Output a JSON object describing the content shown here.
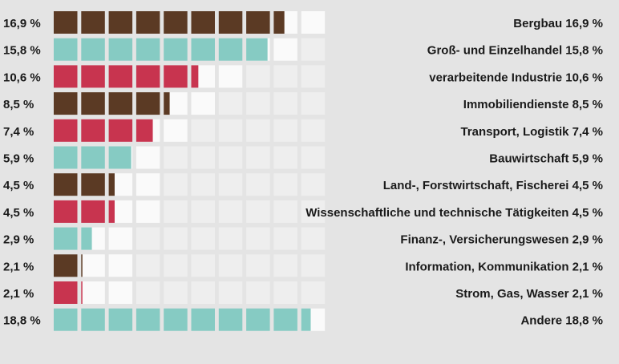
{
  "chart_data": {
    "type": "bar",
    "title": "",
    "xlabel": "",
    "ylabel": "",
    "ylim": [
      0,
      20
    ],
    "unit_per_cell": 2,
    "grid": false,
    "legend": "none",
    "categories": [
      "Bergbau",
      "Groß- und Einzelhandel",
      "verarbeitende Industrie",
      "Immobiliendienste",
      "Transport, Logistik",
      "Bauwirtschaft",
      "Land-, Forstwirtschaft, Fischerei",
      "Wissenschaftliche und technische Tätigkeiten",
      "Finanz-, Versicherungswesen",
      "Information, Kommunikation",
      "Strom, Gas, Wasser",
      "Andere"
    ],
    "values": [
      16.9,
      15.8,
      10.6,
      8.5,
      7.4,
      5.9,
      4.5,
      4.5,
      2.9,
      2.1,
      2.1,
      18.8
    ],
    "value_labels": [
      "16,9 %",
      "15,8 %",
      "10,6 %",
      "8,5 %",
      "7,4 %",
      "5,9 %",
      "4,5 %",
      "4,5 %",
      "2,9 %",
      "2,1 %",
      "2,1 %",
      "18,8 %"
    ],
    "row_labels": [
      "Bergbau 16,9 %",
      "Groß- und Einzelhandel 15,8 %",
      "verarbeitende Industrie 10,6 %",
      "Immobiliendienste 8,5 %",
      "Transport, Logistik 7,4 %",
      "Bauwirtschaft 5,9 %",
      "Land-, Forstwirtschaft, Fischerei 4,5 %",
      "Wissenschaftliche und technische Tätigkeiten 4,5 %",
      "Finanz-, Versicherungswesen 2,9 %",
      "Information, Kommunikation 2,1 %",
      "Strom, Gas, Wasser 2,1 %",
      "Andere 18,8 %"
    ],
    "bar_colors": [
      "#5b3a24",
      "#86cbc3",
      "#c8344f",
      "#5b3a24",
      "#c8344f",
      "#86cbc3",
      "#5b3a24",
      "#c8344f",
      "#86cbc3",
      "#5b3a24",
      "#c8344f",
      "#86cbc3"
    ],
    "colors": {
      "background": "#e4e4e4",
      "empty_cell": "#eeeeee",
      "partial_fill_remainder": "#fafafa"
    }
  }
}
